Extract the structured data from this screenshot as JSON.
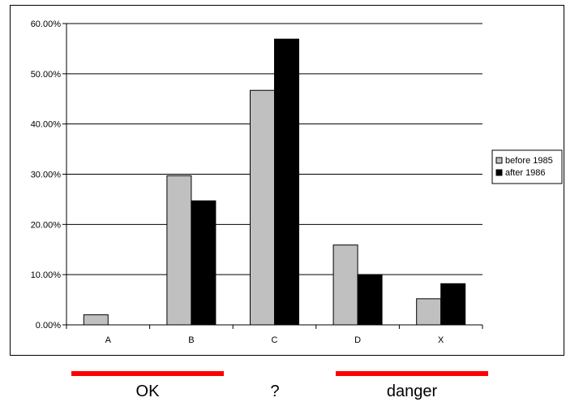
{
  "chart_data": {
    "type": "bar",
    "categories": [
      "A",
      "B",
      "C",
      "D",
      "X"
    ],
    "series": [
      {
        "name": "before 1985",
        "values": [
          2.0,
          29.7,
          46.7,
          15.9,
          5.2
        ],
        "color": "#c0c0c0"
      },
      {
        "name": "after 1986",
        "values": [
          0,
          24.7,
          56.9,
          10.0,
          8.2
        ],
        "color": "#000000"
      }
    ],
    "ylim": [
      0,
      60
    ],
    "yticks": [
      0,
      10,
      20,
      30,
      40,
      50,
      60
    ],
    "ytick_labels": [
      "0.00%",
      "10.00%",
      "20.00%",
      "30.00%",
      "40.00%",
      "50.00%",
      "60.00%"
    ],
    "grid": true,
    "legend": "right",
    "title": "",
    "xlabel": "",
    "ylabel": ""
  },
  "annotations": [
    {
      "label": "OK",
      "color": "#ff0000"
    },
    {
      "label": "?",
      "color": ""
    },
    {
      "label": "danger",
      "color": "#ff0000"
    }
  ]
}
